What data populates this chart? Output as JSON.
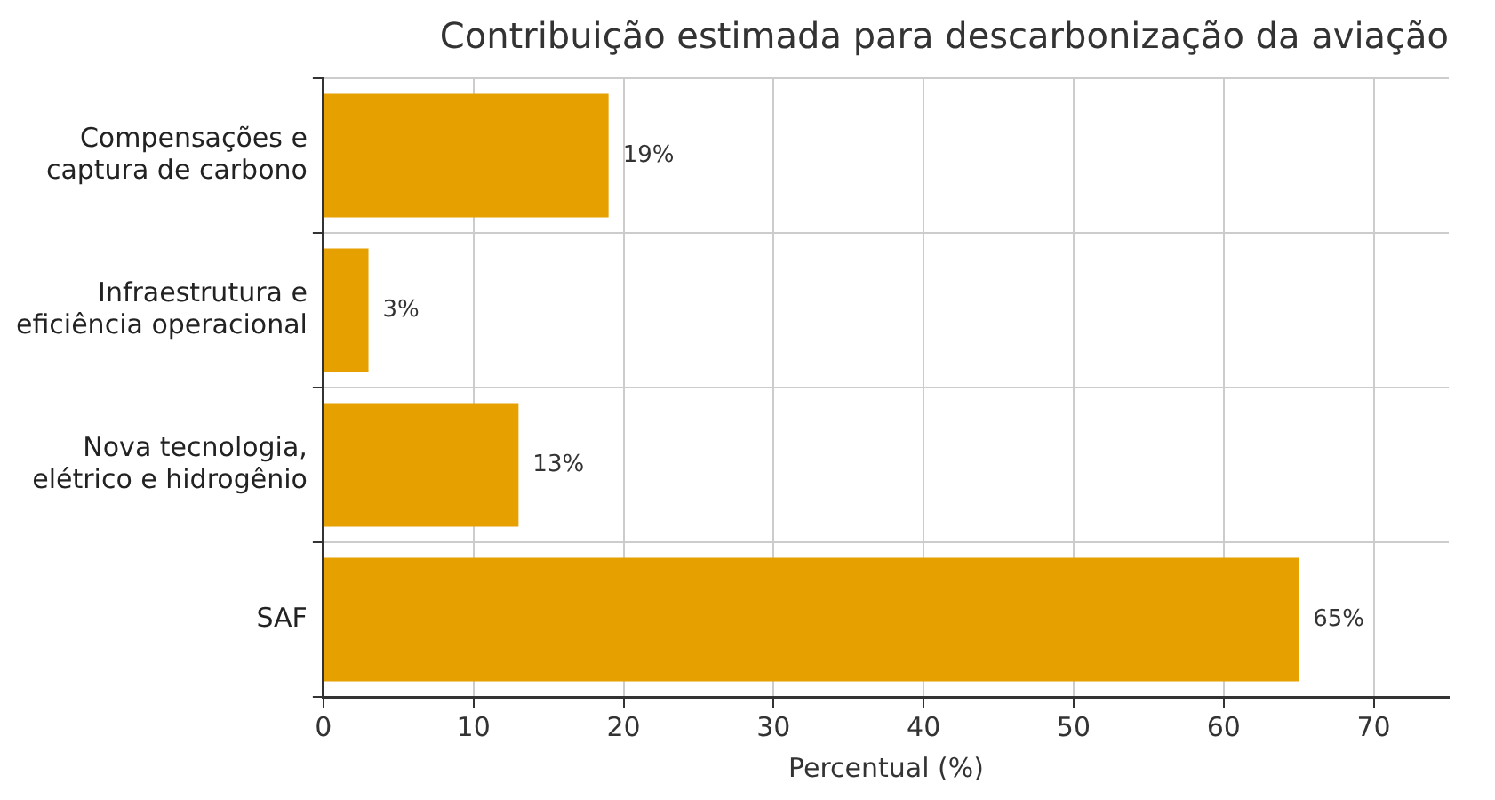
{
  "chart_data": {
    "type": "bar",
    "orientation": "horizontal",
    "title": "Contribuição estimada para descarbonização da aviação",
    "xlabel": "Percentual (%)",
    "categories": [
      "Compensações e\ncaptura de carbono",
      "Infraestrutura e\neficiência operacional",
      "Nova tecnologia,\nelétrico e hidrogênio",
      "SAF"
    ],
    "values": [
      19,
      3,
      13,
      65
    ],
    "value_labels": [
      "19%",
      "3%",
      "13%",
      "65%"
    ],
    "color": "#e6a000",
    "xlim": [
      0,
      75
    ],
    "xticks": [
      0,
      10,
      20,
      30,
      40,
      50,
      60,
      70
    ],
    "grid": true,
    "legend": false
  }
}
